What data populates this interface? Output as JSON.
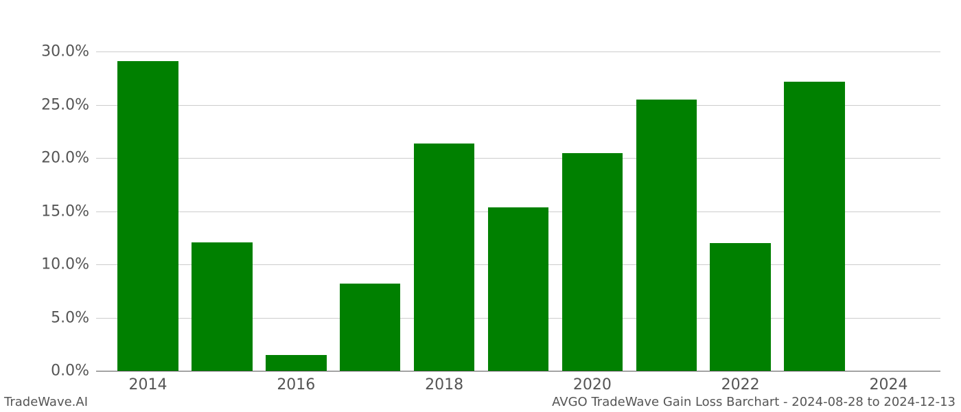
{
  "chart": {
    "type": "bar",
    "background_color": "#ffffff",
    "grid_color": "#cccccc",
    "axis_text_color": "#555555",
    "bar_color": "#008000",
    "label_fontsize": 22,
    "footer_fontsize": 18,
    "ylim": [
      0,
      31
    ],
    "yticks": [
      0,
      5,
      10,
      15,
      20,
      25,
      30
    ],
    "ytick_labels": [
      "0.0%",
      "5.0%",
      "10.0%",
      "15.0%",
      "20.0%",
      "25.0%",
      "30.0%"
    ],
    "xticks": [
      2014,
      2016,
      2018,
      2020,
      2022,
      2024
    ],
    "xtick_labels": [
      "2014",
      "2016",
      "2018",
      "2020",
      "2022",
      "2024"
    ],
    "x_range": [
      2013.3,
      2024.7
    ],
    "bar_width_years": 0.82,
    "years": [
      2014,
      2015,
      2016,
      2017,
      2018,
      2019,
      2020,
      2021,
      2022,
      2023,
      2024
    ],
    "values": [
      29.1,
      12.1,
      1.5,
      8.2,
      21.4,
      15.4,
      20.5,
      25.5,
      12.0,
      27.2,
      0.0
    ]
  },
  "footer": {
    "left": "TradeWave.AI",
    "right": "AVGO TradeWave Gain Loss Barchart - 2024-08-28 to 2024-12-13"
  }
}
